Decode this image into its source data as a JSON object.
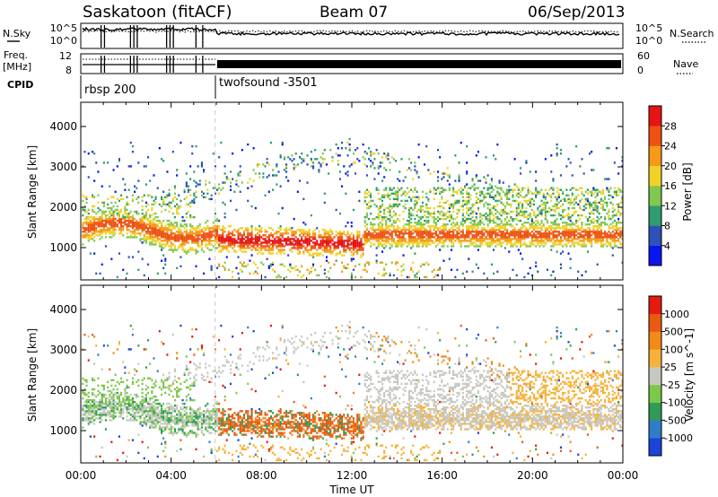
{
  "header": {
    "station": "Saskatoon (fitACF)",
    "beam": "Beam 07",
    "date": "06/Sep/2013"
  },
  "status_panel": {
    "left_top_label": "N.Sky",
    "left_freq_label_1": "Freq.",
    "left_freq_label_2": "[MHz]",
    "cpid_label": "CPID",
    "right_top_label": "N.Search",
    "right_bottom_label": "Nave",
    "ticks_left_top": [
      "10^5",
      "10^0"
    ],
    "ticks_left_bottom": [
      "12",
      "8"
    ],
    "ticks_right_top": [
      "10^5",
      "10^0"
    ],
    "ticks_right_bottom": [
      "60",
      "0"
    ],
    "cpid_segments": [
      {
        "label": "rbsp 200",
        "start_hour": 0,
        "end_hour": 5.95
      },
      {
        "label": "twofsound -3501",
        "start_hour": 5.95,
        "end_hour": 24
      }
    ]
  },
  "chart_data": [
    {
      "type": "heatmap",
      "panel": "power",
      "xlabel": "",
      "ylabel": "Slant Range [km]",
      "xlim": [
        0,
        24
      ],
      "ylim": [
        200,
        4600
      ],
      "yticks": [
        1000,
        2000,
        3000,
        4000
      ],
      "colorbar": {
        "label": "Power [dB]",
        "ticks": [
          "4",
          "8",
          "12",
          "16",
          "20",
          "24",
          "28"
        ],
        "colors": [
          "#0a14f0",
          "#2c52b8",
          "#2e9c6e",
          "#80c850",
          "#f0d228",
          "#f49a18",
          "#ee5212",
          "#e61414"
        ]
      },
      "description_bands": [
        {
          "start_hour": 0.0,
          "end_hour": 6.0,
          "range_km": [
            900,
            1600
          ],
          "level_db": 22
        },
        {
          "start_hour": 6.0,
          "end_hour": 12.5,
          "range_km": [
            800,
            1600
          ],
          "level_db": 26
        },
        {
          "start_hour": 12.5,
          "end_hour": 24.0,
          "range_km": [
            900,
            1600
          ],
          "level_db": 20
        },
        {
          "start_hour": 12.5,
          "end_hour": 20.0,
          "range_km": [
            1800,
            3300
          ],
          "level_db": 10
        }
      ]
    },
    {
      "type": "heatmap",
      "panel": "velocity",
      "xlabel": "Time UT",
      "ylabel": "Slant Range [km]",
      "xlim": [
        0,
        24
      ],
      "ylim": [
        200,
        4600
      ],
      "xticks": [
        "00:00",
        "04:00",
        "08:00",
        "12:00",
        "16:00",
        "20:00",
        "00:00"
      ],
      "yticks": [
        1000,
        2000,
        3000,
        4000
      ],
      "colorbar": {
        "label": "Velocity [m s^-1]",
        "ticks": [
          "1000",
          "500",
          "100",
          "25",
          "-25",
          "-100",
          "-500",
          "-1000"
        ],
        "colors": [
          "#1a44d8",
          "#2f7dc8",
          "#2e9c56",
          "#7cc84a",
          "#c8c8c0",
          "#f6b23a",
          "#f28a18",
          "#ea5a12",
          "#e41a10"
        ]
      }
    }
  ]
}
